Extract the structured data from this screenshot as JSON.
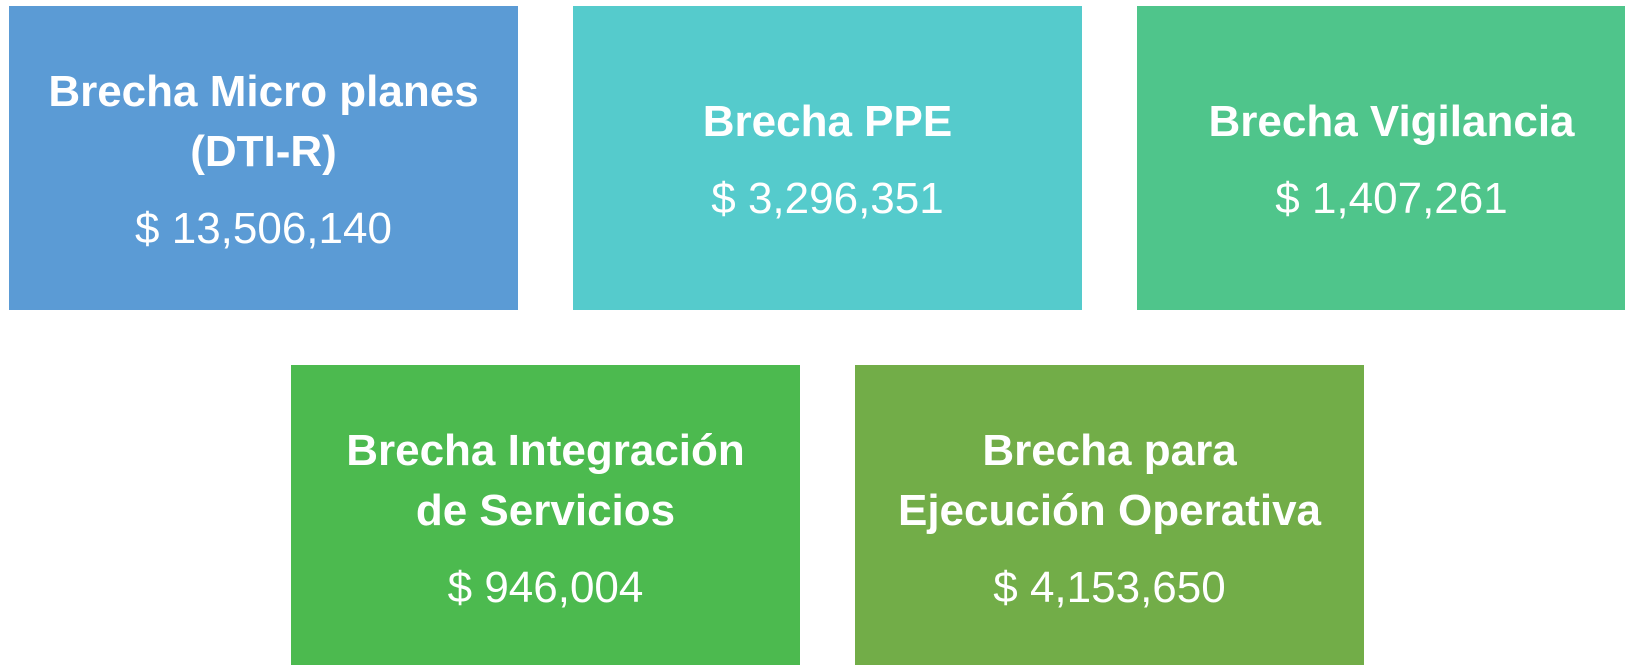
{
  "boxes": [
    {
      "title_lines": [
        "Brecha Micro planes",
        "(DTI-R)"
      ],
      "amount": "$ 13,506,140"
    },
    {
      "title_lines": [
        "Brecha PPE"
      ],
      "amount": "$ 3,296,351"
    },
    {
      "title_lines": [
        "Brecha Vigilancia"
      ],
      "amount": "$ 1,407,261"
    },
    {
      "title_lines": [
        "Brecha Integración",
        "de Servicios"
      ],
      "amount": "$ 946,004"
    },
    {
      "title_lines": [
        "Brecha para",
        "Ejecución Operativa"
      ],
      "amount": "$ 4,153,650"
    }
  ]
}
